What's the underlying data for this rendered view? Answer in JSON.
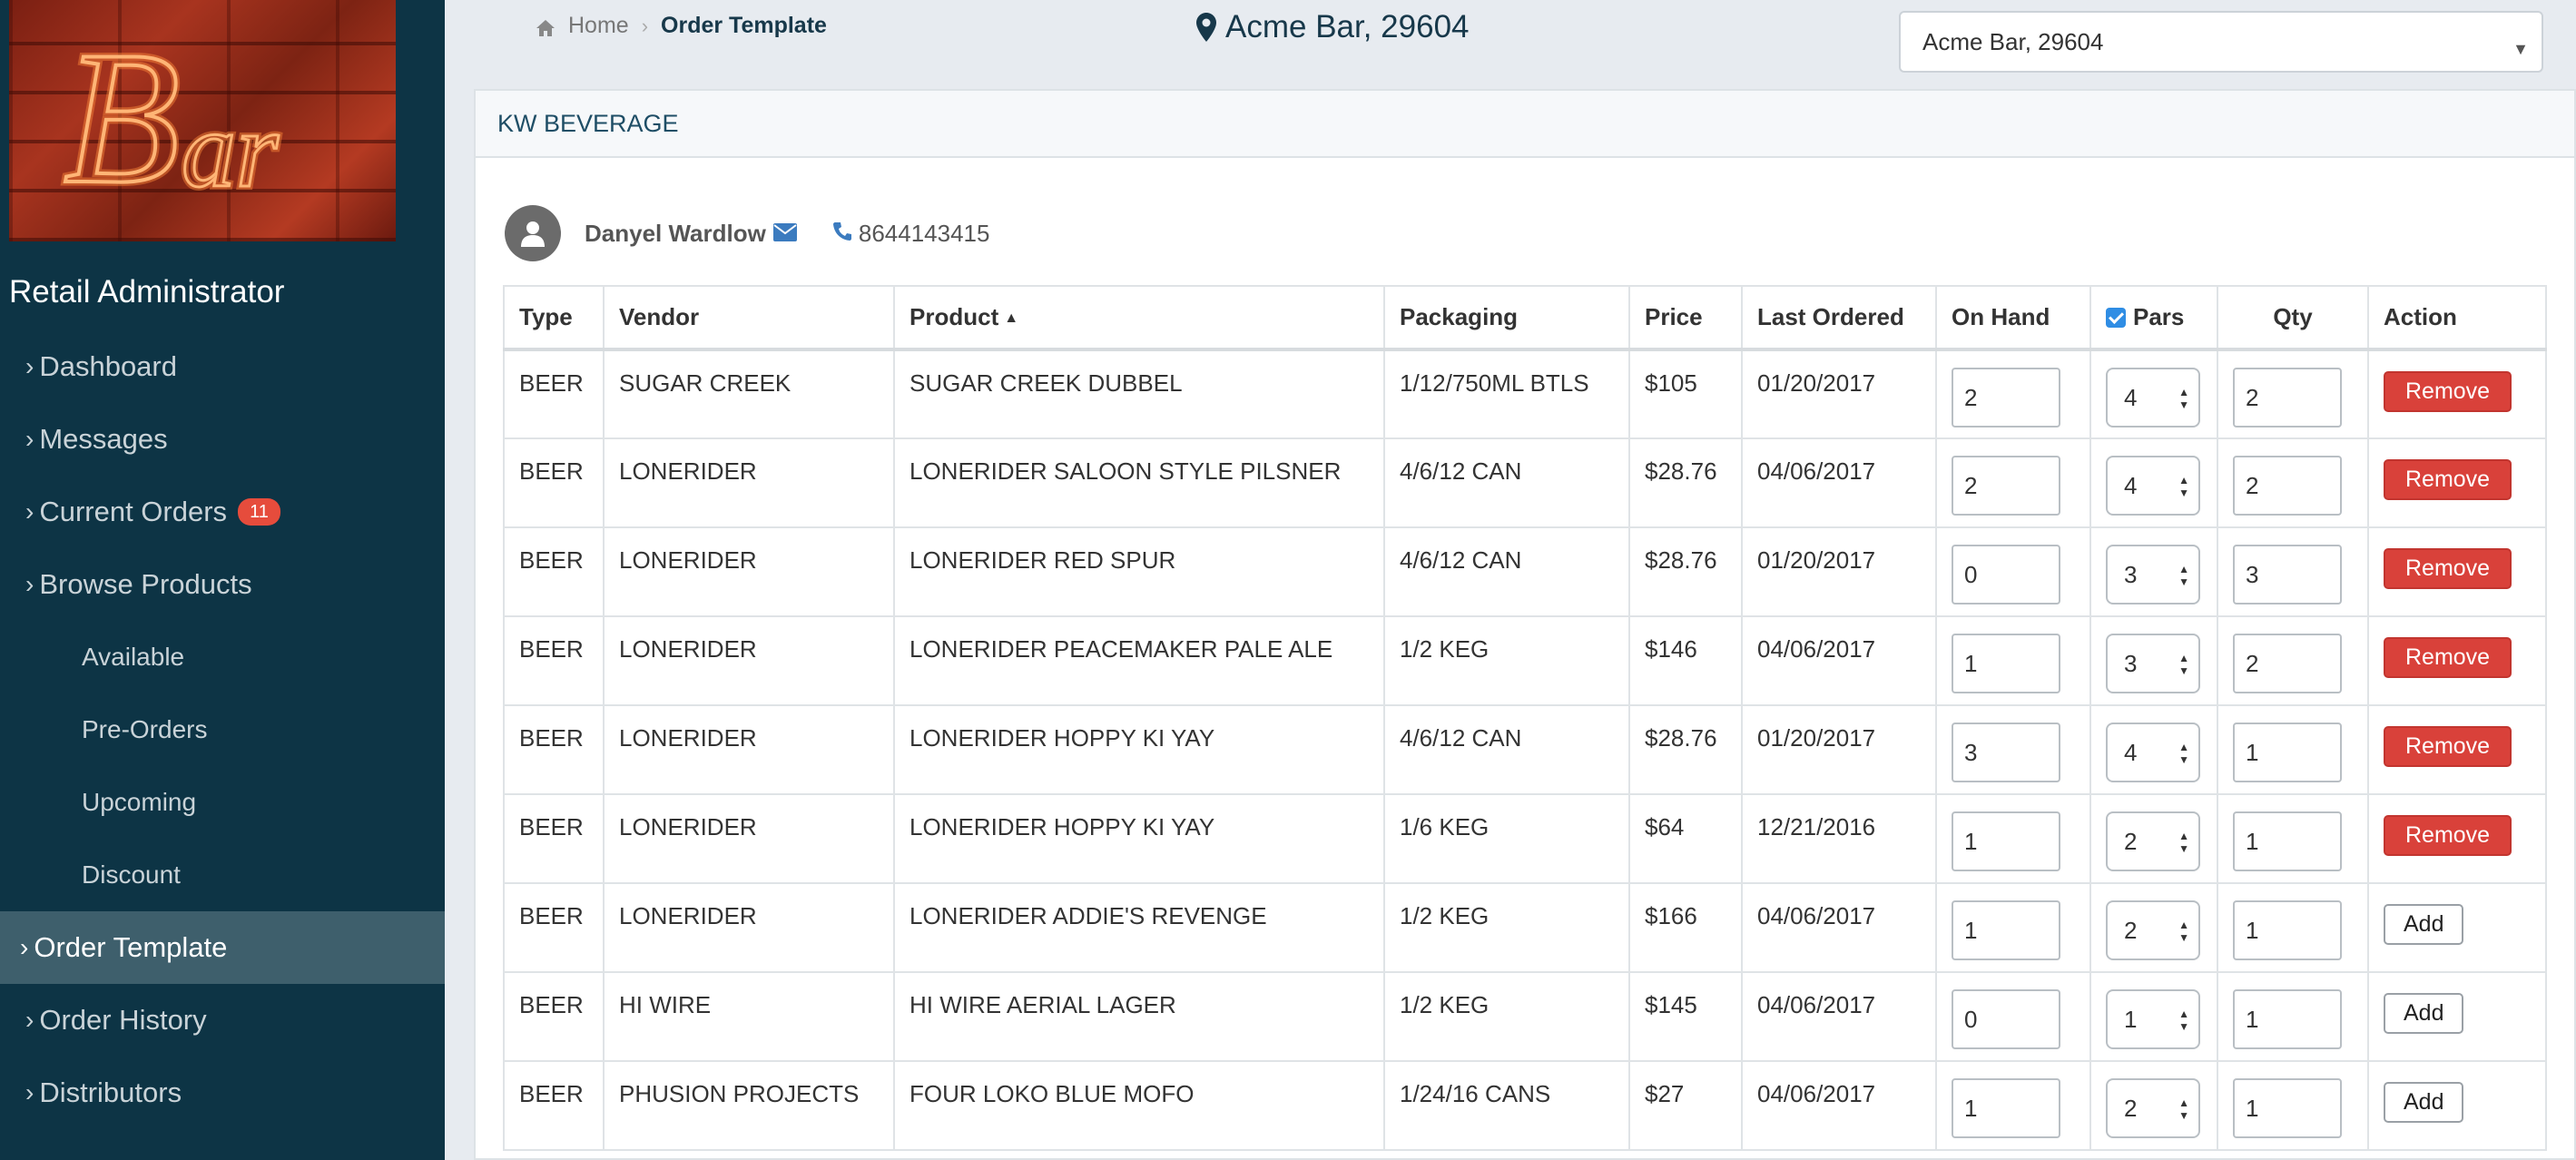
{
  "sidebar": {
    "logo_text": "Bar",
    "role_title": "Retail Administrator",
    "nav": [
      {
        "label": "Dashboard"
      },
      {
        "label": "Messages"
      },
      {
        "label": "Current Orders",
        "badge": "11"
      },
      {
        "label": "Browse Products"
      },
      {
        "label": "Available"
      },
      {
        "label": "Pre-Orders"
      },
      {
        "label": "Upcoming"
      },
      {
        "label": "Discount"
      },
      {
        "label": "Order Template"
      },
      {
        "label": "Order History"
      },
      {
        "label": "Distributors"
      }
    ]
  },
  "header": {
    "breadcrumb_home": "Home",
    "breadcrumb_current": "Order Template",
    "location": "Acme Bar, 29604",
    "location_select_value": "Acme Bar, 29604"
  },
  "panel": {
    "title": "KW BEVERAGE",
    "contact_name": "Danyel Wardlow",
    "contact_phone": "8644143415"
  },
  "table": {
    "columns": [
      "Type",
      "Vendor",
      "Product",
      "Packaging",
      "Price",
      "Last Ordered",
      "On Hand",
      "Pars",
      "Qty",
      "Action"
    ],
    "rows": [
      {
        "type": "BEER",
        "vendor": "SUGAR CREEK",
        "product": "SUGAR CREEK DUBBEL",
        "packaging": "1/12/750ML BTLS",
        "price": "$105",
        "last_ordered": "01/20/2017",
        "on_hand": "2",
        "pars": "4",
        "qty": "2",
        "action": "Remove"
      },
      {
        "type": "BEER",
        "vendor": "LONERIDER",
        "product": "LONERIDER SALOON STYLE PILSNER",
        "packaging": "4/6/12 CAN",
        "price": "$28.76",
        "last_ordered": "04/06/2017",
        "on_hand": "2",
        "pars": "4",
        "qty": "2",
        "action": "Remove"
      },
      {
        "type": "BEER",
        "vendor": "LONERIDER",
        "product": "LONERIDER RED SPUR",
        "packaging": "4/6/12 CAN",
        "price": "$28.76",
        "last_ordered": "01/20/2017",
        "on_hand": "0",
        "pars": "3",
        "qty": "3",
        "action": "Remove"
      },
      {
        "type": "BEER",
        "vendor": "LONERIDER",
        "product": "LONERIDER PEACEMAKER PALE ALE",
        "packaging": "1/2 KEG",
        "price": "$146",
        "last_ordered": "04/06/2017",
        "on_hand": "1",
        "pars": "3",
        "qty": "2",
        "action": "Remove"
      },
      {
        "type": "BEER",
        "vendor": "LONERIDER",
        "product": "LONERIDER HOPPY KI YAY",
        "packaging": "4/6/12 CAN",
        "price": "$28.76",
        "last_ordered": "01/20/2017",
        "on_hand": "3",
        "pars": "4",
        "qty": "1",
        "action": "Remove"
      },
      {
        "type": "BEER",
        "vendor": "LONERIDER",
        "product": "LONERIDER HOPPY KI YAY",
        "packaging": "1/6 KEG",
        "price": "$64",
        "last_ordered": "12/21/2016",
        "on_hand": "1",
        "pars": "2",
        "qty": "1",
        "action": "Remove"
      },
      {
        "type": "BEER",
        "vendor": "LONERIDER",
        "product": "LONERIDER ADDIE'S REVENGE",
        "packaging": "1/2 KEG",
        "price": "$166",
        "last_ordered": "04/06/2017",
        "on_hand": "1",
        "pars": "2",
        "qty": "1",
        "action": "Add"
      },
      {
        "type": "BEER",
        "vendor": "HI WIRE",
        "product": "HI WIRE AERIAL LAGER",
        "packaging": "1/2 KEG",
        "price": "$145",
        "last_ordered": "04/06/2017",
        "on_hand": "0",
        "pars": "1",
        "qty": "1",
        "action": "Add"
      },
      {
        "type": "BEER",
        "vendor": "PHUSION PROJECTS",
        "product": "FOUR LOKO BLUE MOFO",
        "packaging": "1/24/16 CANS",
        "price": "$27",
        "last_ordered": "04/06/2017",
        "on_hand": "1",
        "pars": "2",
        "qty": "1",
        "action": "Add"
      }
    ]
  },
  "icons": {
    "home": "home-icon",
    "location": "map-marker-icon",
    "user": "user-icon",
    "mail": "envelope-icon",
    "phone": "phone-icon",
    "sort": "sort-asc-icon"
  },
  "colors": {
    "sidebar_bg": "#0d3445",
    "sidebar_active": "#3e5f6c",
    "badge": "#e64c3c",
    "remove_button": "#d9413a",
    "accent_text": "#1f4e66"
  }
}
